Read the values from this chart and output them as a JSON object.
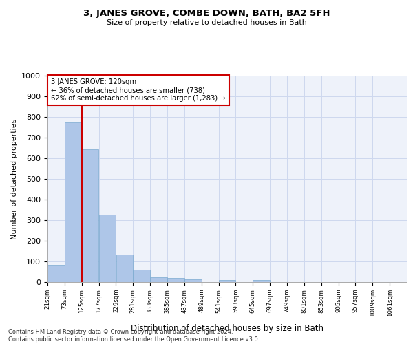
{
  "title": "3, JANES GROVE, COMBE DOWN, BATH, BA2 5FH",
  "subtitle": "Size of property relative to detached houses in Bath",
  "xlabel": "Distribution of detached houses by size in Bath",
  "ylabel": "Number of detached properties",
  "footer_line1": "Contains HM Land Registry data © Crown copyright and database right 2024.",
  "footer_line2": "Contains public sector information licensed under the Open Government Licence v3.0.",
  "annotation_line1": "3 JANES GROVE: 120sqm",
  "annotation_line2": "← 36% of detached houses are smaller (738)",
  "annotation_line3": "62% of semi-detached houses are larger (1,283) →",
  "bar_color": "#aec6e8",
  "bar_edge_color": "#7aaacf",
  "vline_color": "#cc0000",
  "vline_x_bin": 1,
  "categories": [
    "21sqm",
    "73sqm",
    "125sqm",
    "177sqm",
    "229sqm",
    "281sqm",
    "333sqm",
    "385sqm",
    "437sqm",
    "489sqm",
    "541sqm",
    "593sqm",
    "645sqm",
    "697sqm",
    "749sqm",
    "801sqm",
    "853sqm",
    "905sqm",
    "957sqm",
    "1009sqm",
    "1061sqm"
  ],
  "bin_edges": [
    21,
    73,
    125,
    177,
    229,
    281,
    333,
    385,
    437,
    489,
    541,
    593,
    645,
    697,
    749,
    801,
    853,
    905,
    957,
    1009,
    1061,
    1113
  ],
  "values": [
    83,
    775,
    643,
    328,
    133,
    60,
    24,
    20,
    13,
    0,
    10,
    0,
    11,
    0,
    0,
    0,
    0,
    0,
    0,
    0,
    0
  ],
  "ylim": [
    0,
    1000
  ],
  "yticks": [
    0,
    100,
    200,
    300,
    400,
    500,
    600,
    700,
    800,
    900,
    1000
  ],
  "grid_color": "#ced8ee",
  "background_color": "#eef2fa"
}
